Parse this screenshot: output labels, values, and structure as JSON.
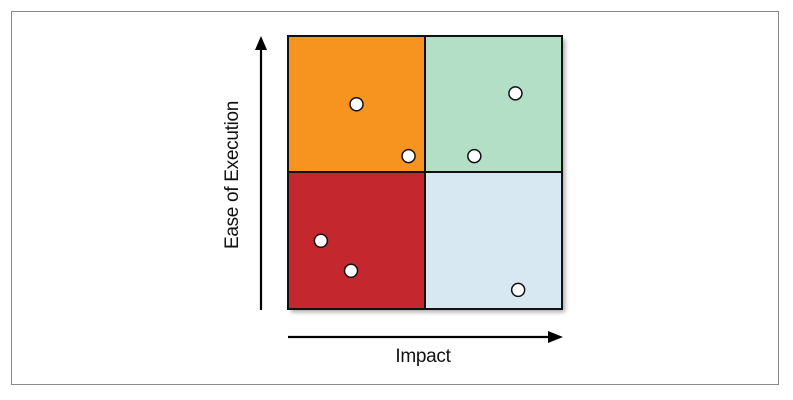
{
  "diagram": {
    "y_axis_label": "Ease of Execution",
    "x_axis_label": "Impact",
    "colors": {
      "top_left": "#f6941f",
      "top_right": "#b2dfc6",
      "bottom_left": "#c5272e",
      "bottom_right": "#d7e8f2",
      "border": "#111111",
      "axis": "#000000",
      "point_fill": "#ffffff"
    },
    "points": [
      {
        "x": 0.25,
        "y": 0.75
      },
      {
        "x": 0.44,
        "y": 0.56
      },
      {
        "x": 0.68,
        "y": 0.56
      },
      {
        "x": 0.83,
        "y": 0.79
      },
      {
        "x": 0.12,
        "y": 0.25
      },
      {
        "x": 0.23,
        "y": 0.14
      },
      {
        "x": 0.84,
        "y": 0.07
      }
    ]
  }
}
